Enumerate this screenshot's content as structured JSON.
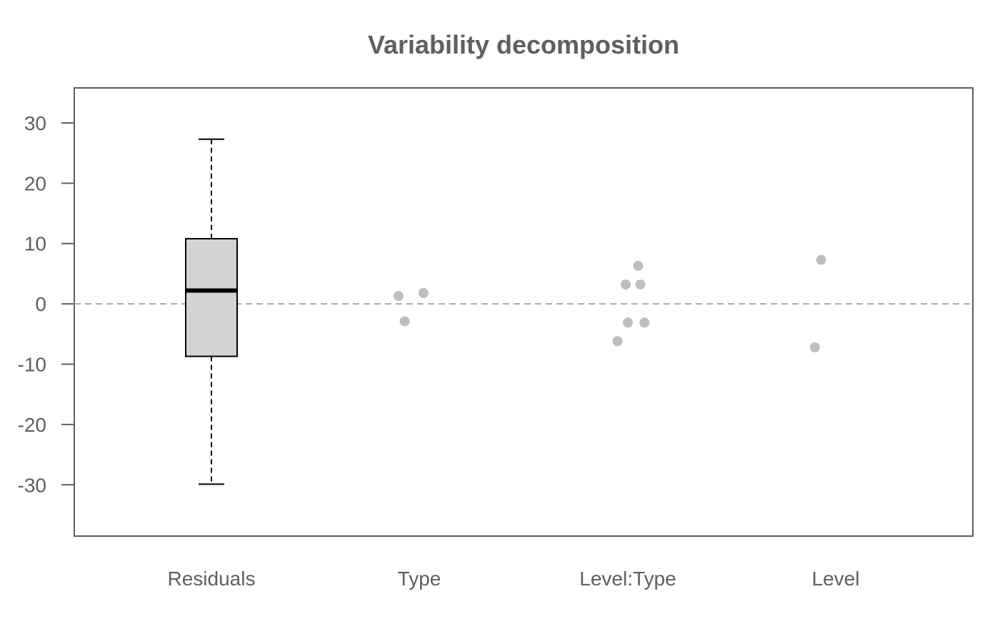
{
  "chart_data": {
    "type": "box+strip",
    "title": "Variability decomposition",
    "xlabel": "",
    "ylabel": "",
    "ylim": [
      -38.5,
      35.8
    ],
    "yticks": [
      30,
      20,
      10,
      0,
      -10,
      -20,
      -30
    ],
    "reference_line": {
      "y": 0,
      "style": "dashed",
      "color": "#a9a9a9"
    },
    "categories": [
      "Residuals",
      "Type",
      "Level:Type",
      "Level"
    ],
    "boxplot": {
      "category": "Residuals",
      "whisker_low": -29.9,
      "q1": -8.7,
      "median": 2.2,
      "q3": 10.8,
      "whisker_high": 27.3,
      "fill": "#d3d3d3"
    },
    "points": [
      {
        "category": "Type",
        "values": [
          1.3,
          1.8,
          -2.9
        ],
        "jitter": [
          -0.1,
          0.02,
          -0.07
        ]
      },
      {
        "category": "Level:Type",
        "values": [
          6.3,
          3.2,
          3.2,
          -3.1,
          -3.1,
          -6.2
        ],
        "jitter": [
          0.05,
          -0.01,
          0.06,
          0.0,
          0.08,
          -0.05
        ]
      },
      {
        "category": "Level",
        "values": [
          7.3,
          -7.2
        ],
        "jitter": [
          -0.07,
          -0.1
        ]
      }
    ],
    "point_color": "#bebebe"
  }
}
